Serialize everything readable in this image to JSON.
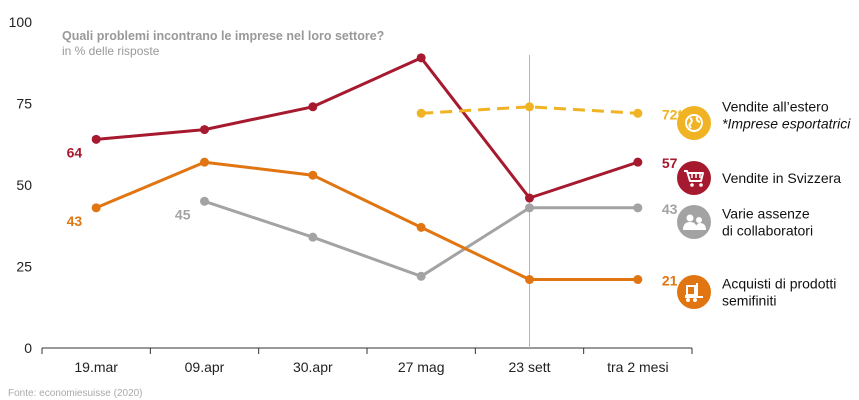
{
  "chart_data": {
    "type": "line",
    "title": "Quali problemi incontrano le imprese nel loro settore?",
    "subtitle": "in % delle risposte",
    "source": "Fonte: economiesuisse (2020)",
    "categories": [
      "19.mar",
      "09.apr",
      "30.apr",
      "27 mag",
      "23 sett",
      "tra 2 mesi"
    ],
    "ylim": [
      0,
      100
    ],
    "yticks": [
      0,
      25,
      50,
      75,
      100
    ],
    "grid": false,
    "vertical_marker_category": "23 sett",
    "series": [
      {
        "name": "Vendite in Svizzera",
        "color": "#a6192e",
        "style": "solid",
        "values": [
          64,
          67,
          74,
          89,
          46,
          57
        ],
        "start_label": "64",
        "end_label": "57",
        "icon": "shopping-cart-icon"
      },
      {
        "name": "Acquisti di prodotti semifiniti",
        "color": "#e07511",
        "style": "solid",
        "values": [
          43,
          57,
          53,
          37,
          21,
          21
        ],
        "start_label": "43",
        "end_label": "21",
        "icon": "forklift-icon"
      },
      {
        "name": "Varie assenze di collaboratori",
        "color": "#a3a3a3",
        "style": "solid",
        "values": [
          null,
          45,
          34,
          22,
          43,
          43
        ],
        "start_label": "45",
        "end_label": "43",
        "icon": "people-icon"
      },
      {
        "name": "Vendite all’estero",
        "note": "*Imprese esportatrici",
        "color": "#f0b323",
        "style": "dashed",
        "values": [
          null,
          null,
          null,
          72,
          74,
          72
        ],
        "end_label": "72*",
        "icon": "globe-icon"
      }
    ],
    "legend": [
      {
        "series": "Vendite all’estero",
        "lines": [
          "Vendite all’estero",
          "*Imprese esportatrici"
        ],
        "italic_line": 1,
        "icon_color": "#f0b323",
        "icon": "globe-icon"
      },
      {
        "series": "Vendite in Svizzera",
        "lines": [
          "Vendite in Svizzera"
        ],
        "icon_color": "#a6192e",
        "icon": "shopping-cart-icon"
      },
      {
        "series": "Varie assenze di collaboratori",
        "lines": [
          "Varie assenze",
          "di collaboratori"
        ],
        "icon_color": "#a3a3a3",
        "icon": "people-icon"
      },
      {
        "series": "Acquisti di prodotti semifiniti",
        "lines": [
          "Acquisti di prodotti",
          "semifiniti"
        ],
        "icon_color": "#e07511",
        "icon": "forklift-icon"
      }
    ]
  }
}
